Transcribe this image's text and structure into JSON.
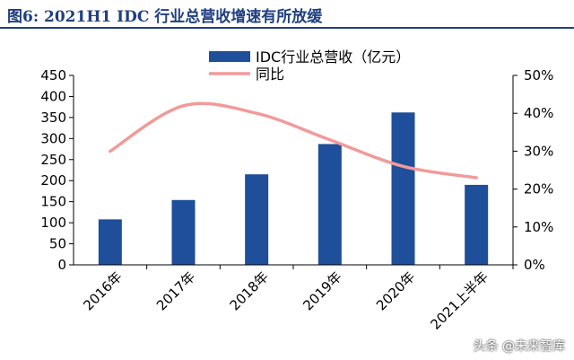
{
  "header": {
    "title": "图6: 2021H1 IDC 行业总营收增速有所放缓"
  },
  "watermark": "头条 @未来智库",
  "colors": {
    "bar": "#1f4e9a",
    "line": "#f29a9a",
    "title": "#1f3f80",
    "axis": "#000000"
  },
  "chart_data": {
    "type": "bar",
    "categories": [
      "2016年",
      "2017年",
      "2018年",
      "2019年",
      "2020年",
      "2021上半年"
    ],
    "series": [
      {
        "name": "IDC行业总营收（亿元）",
        "type": "bar",
        "axis": "left",
        "values": [
          108,
          154,
          215,
          287,
          362,
          190
        ]
      },
      {
        "name": "同比",
        "type": "line",
        "axis": "right",
        "smooth": true,
        "values": [
          30,
          42,
          40,
          33,
          26,
          23
        ]
      }
    ],
    "ylim": [
      0,
      450
    ],
    "yticks": [
      "0",
      "50",
      "100",
      "150",
      "200",
      "250",
      "300",
      "350",
      "400",
      "450"
    ],
    "y2lim": [
      0,
      50
    ],
    "y2ticks": [
      "0%",
      "10%",
      "20%",
      "30%",
      "40%",
      "50%"
    ],
    "legend_position": "top-center",
    "grid": false
  }
}
